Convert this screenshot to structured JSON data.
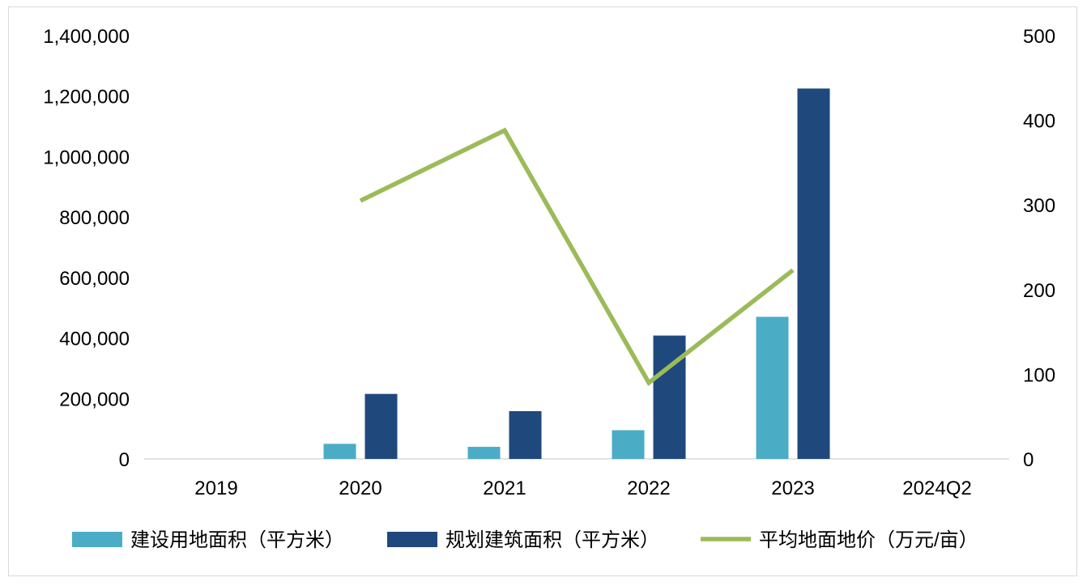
{
  "chart_data": {
    "type": "bar",
    "categories": [
      "2019",
      "2020",
      "2021",
      "2022",
      "2023",
      "2024Q2"
    ],
    "series": [
      {
        "name": "建设用地面积（平方米）",
        "type": "bar",
        "axis": "left",
        "color": "#4bacc6",
        "values": [
          null,
          50000,
          40000,
          95000,
          470000,
          null
        ]
      },
      {
        "name": "规划建筑面积（平方米）",
        "type": "bar",
        "axis": "left",
        "color": "#1f497d",
        "values": [
          null,
          215000,
          158000,
          408000,
          1225000,
          null
        ]
      },
      {
        "name": "平均地面地价（万元/亩）",
        "type": "line",
        "axis": "right",
        "color": "#9bbb59",
        "values": [
          null,
          305,
          388,
          90,
          223,
          null
        ]
      }
    ],
    "y_left": {
      "lim": [
        0,
        1400000
      ],
      "ticks": [
        "0",
        "200,000",
        "400,000",
        "600,000",
        "800,000",
        "1,000,000",
        "1,200,000",
        "1,400,000"
      ]
    },
    "y_right": {
      "lim": [
        0,
        500
      ],
      "ticks": [
        "0",
        "100",
        "200",
        "300",
        "400",
        "500"
      ]
    },
    "grid": false,
    "legend_position": "bottom"
  }
}
